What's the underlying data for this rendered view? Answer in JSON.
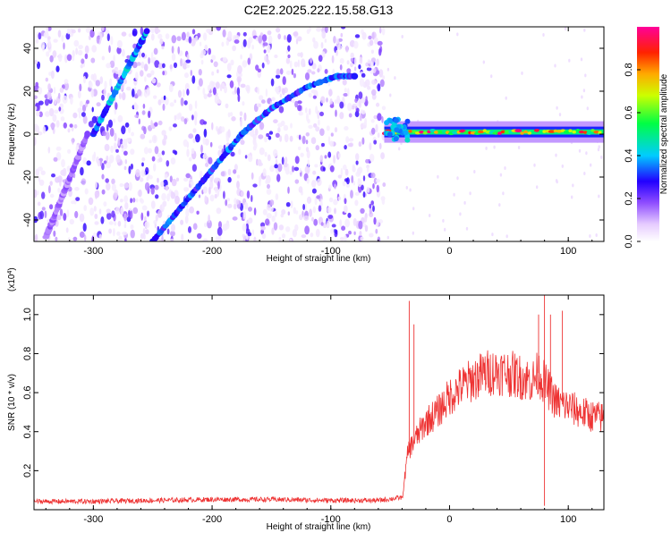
{
  "title": "C2E2.2025.222.15.58.G13",
  "colorbar": {
    "label": "Normalized spectral amplitude",
    "ticks": [
      "0.0",
      "0.2",
      "0.4",
      "0.6",
      "0.8"
    ],
    "tick_values": [
      0.0,
      0.2,
      0.4,
      0.6,
      0.8
    ]
  },
  "chart_data": [
    {
      "type": "heatmap",
      "xlabel": "Height of straight line (km)",
      "ylabel": "Frequency (Hz)",
      "xlim": [
        -350,
        130
      ],
      "ylim": [
        -50,
        50
      ],
      "x_ticks": [
        -300,
        -200,
        -100,
        0,
        100
      ],
      "x_tick_labels": [
        "-300",
        "-200",
        "-100",
        "0",
        "100"
      ],
      "y_ticks": [
        -40,
        -20,
        0,
        20,
        40
      ],
      "y_tick_labels": [
        "-40",
        "-20",
        "0",
        "20",
        "40"
      ],
      "colorscale_range": [
        0,
        1
      ],
      "features": [
        {
          "kind": "diagonal-track",
          "from": [
            -300,
            0
          ],
          "to": [
            -255,
            48
          ],
          "amplitude": 0.35
        },
        {
          "kind": "diagonal-track",
          "from": [
            -250,
            -50
          ],
          "to": [
            -175,
            0
          ],
          "amplitude": 0.3
        },
        {
          "kind": "curved-track",
          "points": [
            [
              -175,
              0
            ],
            [
              -150,
              12
            ],
            [
              -120,
              22
            ],
            [
              -95,
              27
            ],
            [
              -80,
              27
            ]
          ],
          "amplitude": 0.3
        },
        {
          "kind": "steep-track",
          "from": [
            -340,
            -48
          ],
          "to": [
            -305,
            0
          ],
          "amplitude": 0.15
        },
        {
          "kind": "horizontal-band",
          "from": [
            -55,
            1
          ],
          "to": [
            130,
            1
          ],
          "amplitude": 0.9
        }
      ]
    },
    {
      "type": "line",
      "xlabel": "Height of straight line (km)",
      "ylabel": "SNR (10 * v/v)",
      "y_multiplier": "(x10^4)",
      "xlim": [
        -350,
        130
      ],
      "ylim": [
        0,
        1.1
      ],
      "x_ticks": [
        -300,
        -200,
        -100,
        0,
        100
      ],
      "x_tick_labels": [
        "-300",
        "-200",
        "-100",
        "0",
        "100"
      ],
      "y_ticks": [
        0.2,
        0.4,
        0.6,
        0.8,
        1.0
      ],
      "y_tick_labels": [
        "0.2",
        "0.4",
        "0.6",
        "0.8",
        "1.0"
      ],
      "series": [
        {
          "color": "#ee3333",
          "x": [
            -350,
            -300,
            -250,
            -200,
            -150,
            -100,
            -60,
            -40,
            -35,
            -30,
            -20,
            -10,
            0,
            10,
            20,
            30,
            40,
            50,
            60,
            70,
            75,
            80,
            85,
            90,
            100,
            110,
            120,
            130
          ],
          "y": [
            0.03,
            0.03,
            0.035,
            0.04,
            0.04,
            0.035,
            0.035,
            0.05,
            0.3,
            0.35,
            0.45,
            0.5,
            0.58,
            0.63,
            0.67,
            0.7,
            0.71,
            0.7,
            0.68,
            0.66,
            0.7,
            0.65,
            0.6,
            0.55,
            0.53,
            0.5,
            0.48,
            0.47
          ],
          "spikes": [
            [
              -34,
              1.07
            ],
            [
              -30,
              0.95
            ],
            [
              75,
              1.0
            ],
            [
              80,
              1.12
            ],
            [
              85,
              1.0
            ],
            [
              95,
              1.02
            ],
            [
              80,
              0.02
            ]
          ]
        }
      ]
    }
  ]
}
